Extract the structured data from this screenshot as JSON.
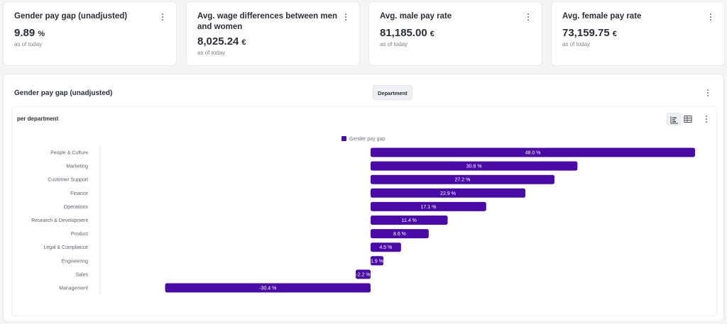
{
  "kpis": [
    {
      "title": "Gender pay gap (unadjusted)",
      "value": "9.89",
      "unit": "%",
      "sub": "as of today"
    },
    {
      "title": "Avg. wage differences between men and women",
      "value": "8,025.24",
      "unit": "€",
      "sub": "as of today"
    },
    {
      "title": "Avg. male pay rate",
      "value": "81,185.00",
      "unit": "€",
      "sub": "as of today"
    },
    {
      "title": "Avg. female pay rate",
      "value": "73,159.75",
      "unit": "€",
      "sub": "as of today"
    }
  ],
  "panel": {
    "title": "Gender pay gap (unadjusted)",
    "dimension_button": "Department",
    "subtitle": "per department"
  },
  "colors": {
    "bar": "#4a0aa6"
  },
  "chart_data": {
    "type": "bar",
    "orientation": "horizontal",
    "legend": "Gender pay gap",
    "categories": [
      "People & Culture",
      "Marketing",
      "Customer Support",
      "Finance",
      "Operations",
      "Research & Development",
      "Product",
      "Legal & Compliance",
      "Engineering",
      "Sales",
      "Management"
    ],
    "values": [
      48.0,
      30.6,
      27.2,
      22.9,
      17.1,
      11.4,
      8.6,
      4.5,
      1.9,
      -2.2,
      -30.4
    ],
    "labels": [
      "48.0 %",
      "30.6 %",
      "27.2 %",
      "22.9 %",
      "17.1 %",
      "11.4 %",
      "8.6 %",
      "4.5 %",
      "1.9 %",
      "-2.2 %",
      "-30.4 %"
    ],
    "xlim": [
      -40,
      48
    ]
  }
}
